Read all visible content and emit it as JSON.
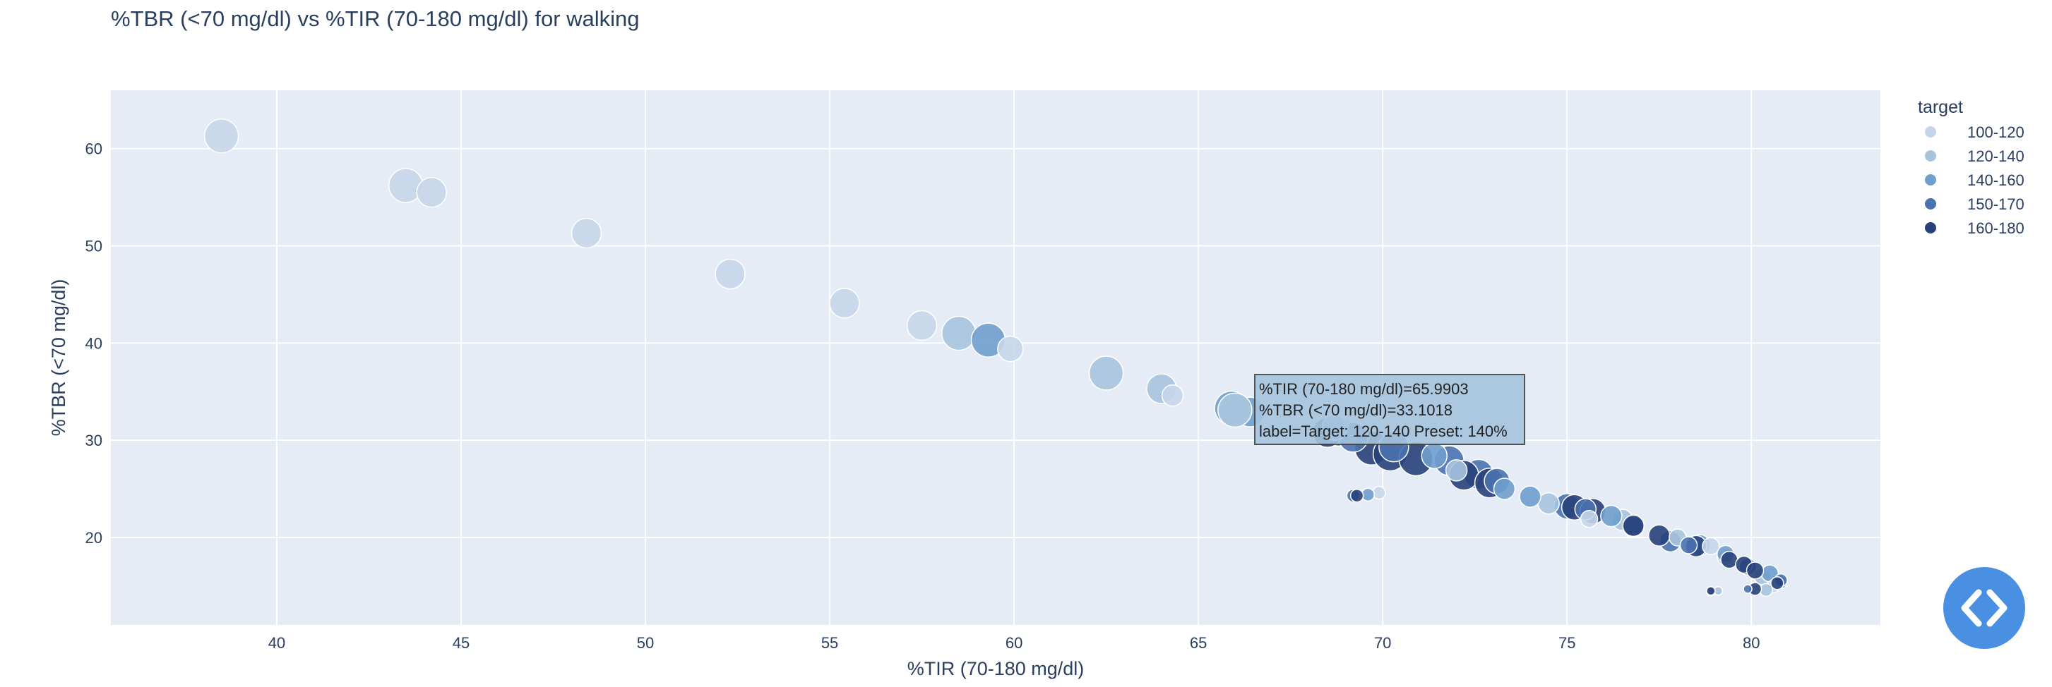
{
  "chart_data": {
    "type": "scatter",
    "title": "%TBR (<70 mg/dl) vs %TIR (70-180 mg/dl) for walking",
    "xlabel": "%TIR (70-180 mg/dl)",
    "ylabel": "%TBR (<70 mg/dl)",
    "xlim": [
      35.5,
      83.5
    ],
    "ylim": [
      11,
      66
    ],
    "x_ticks": [
      40,
      45,
      50,
      55,
      60,
      65,
      70,
      75,
      80
    ],
    "y_ticks": [
      20,
      30,
      40,
      50,
      60
    ],
    "grid": true,
    "legend_title": "target",
    "legend_position": "right",
    "series": [
      {
        "name": "100-120",
        "color": "#c6d6ea",
        "points": [
          [
            38.5,
            61.3,
            7
          ],
          [
            43.5,
            56.2,
            7
          ],
          [
            44.2,
            55.5,
            6
          ],
          [
            48.4,
            51.3,
            6
          ],
          [
            52.3,
            47.1,
            6
          ],
          [
            55.4,
            44.1,
            6
          ],
          [
            57.5,
            41.8,
            6
          ],
          [
            59.9,
            39.4,
            5
          ],
          [
            64.3,
            34.6,
            4
          ],
          [
            69.9,
            24.6,
            2
          ],
          [
            75.6,
            21.9,
            3
          ],
          [
            78.9,
            19.1,
            3
          ],
          [
            80.6,
            15.0,
            2
          ]
        ]
      },
      {
        "name": "120-140",
        "color": "#a6c4de",
        "points": [
          [
            58.5,
            41.0,
            7
          ],
          [
            62.5,
            36.9,
            7
          ],
          [
            64.0,
            35.3,
            6
          ],
          [
            68.7,
            31.3,
            5
          ],
          [
            72.0,
            26.9,
            4
          ],
          [
            74.5,
            23.5,
            4
          ],
          [
            76.5,
            21.8,
            4
          ],
          [
            78.0,
            20.0,
            3
          ],
          [
            79.3,
            18.0,
            3
          ],
          [
            80.3,
            16.0,
            3
          ],
          [
            80.4,
            14.6,
            2
          ],
          [
            79.1,
            14.5,
            1
          ]
        ]
      },
      {
        "name": "140-160",
        "color": "#6f9fcd",
        "points": [
          [
            59.3,
            40.3,
            7
          ],
          [
            65.9,
            33.3,
            7
          ],
          [
            66.4,
            32.9,
            6
          ],
          [
            68.8,
            30.9,
            6
          ],
          [
            71.4,
            28.4,
            5
          ],
          [
            73.3,
            25.0,
            4
          ],
          [
            74.0,
            24.2,
            4
          ],
          [
            76.2,
            22.2,
            4
          ],
          [
            78.6,
            19.2,
            4
          ],
          [
            79.3,
            18.3,
            3
          ],
          [
            80.5,
            16.3,
            3
          ],
          [
            80.8,
            15.4,
            2
          ],
          [
            69.6,
            24.4,
            2
          ],
          [
            78.9,
            14.4,
            1
          ]
        ]
      },
      {
        "name": "150-170",
        "color": "#4a72b0",
        "points": [
          [
            69.2,
            30.3,
            6
          ],
          [
            70.3,
            29.3,
            6
          ],
          [
            71.8,
            27.9,
            6
          ],
          [
            72.6,
            26.5,
            6
          ],
          [
            73.1,
            25.8,
            5
          ],
          [
            75.0,
            23.2,
            5
          ],
          [
            75.5,
            22.9,
            4
          ],
          [
            76.8,
            21.1,
            4
          ],
          [
            77.8,
            19.6,
            4
          ],
          [
            78.3,
            19.2,
            3
          ],
          [
            79.9,
            17.0,
            3
          ],
          [
            80.8,
            15.6,
            2
          ],
          [
            69.2,
            24.3,
            2
          ],
          [
            79.9,
            14.7,
            1
          ]
        ]
      },
      {
        "name": "160-180",
        "color": "#27417a",
        "points": [
          [
            68.5,
            30.8,
            6
          ],
          [
            69.7,
            29.2,
            7
          ],
          [
            70.2,
            28.6,
            7
          ],
          [
            70.9,
            28.1,
            7
          ],
          [
            72.2,
            26.4,
            6
          ],
          [
            72.9,
            25.6,
            6
          ],
          [
            75.2,
            23.1,
            5
          ],
          [
            75.7,
            22.7,
            5
          ],
          [
            76.8,
            21.2,
            4
          ],
          [
            77.5,
            20.2,
            4
          ],
          [
            78.5,
            19.1,
            4
          ],
          [
            79.4,
            17.7,
            3
          ],
          [
            79.8,
            17.2,
            3
          ],
          [
            80.1,
            16.6,
            3
          ],
          [
            80.7,
            15.3,
            2
          ],
          [
            69.3,
            24.3,
            2
          ],
          [
            80.1,
            14.7,
            2
          ],
          [
            78.9,
            14.5,
            1
          ]
        ]
      }
    ],
    "hover": {
      "line1": "%TIR (70-180 mg/dl)=65.9903",
      "line2": "%TBR (<70 mg/dl)=33.1018",
      "line3": "label=Target: 120-140 Preset: 140%",
      "x": 65.9903,
      "y": 33.1018,
      "color": "#a6c4de"
    }
  },
  "colors": {
    "plot_background": "#e5ecf6",
    "grid": "#ffffff",
    "text": "#2a3f5f",
    "code_button": "#4a90e2"
  },
  "code_button_icon": "code-brackets-icon"
}
